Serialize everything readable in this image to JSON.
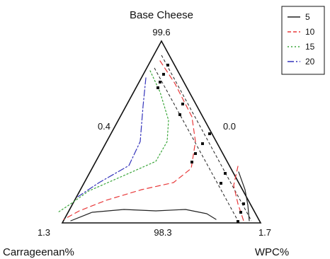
{
  "chart_data": {
    "type": "ternary-contour",
    "title": "Base Cheese",
    "axes": {
      "top": {
        "label": "Base Cheese",
        "max": 99.6
      },
      "left": {
        "label": "Carrageenan%",
        "max": 1.3
      },
      "right": {
        "label": "WPC%",
        "max": 1.7
      },
      "top_tick": "99.6",
      "left_side_tick": "0.4",
      "right_side_tick": "0.0",
      "left_corner_tick": "1.3",
      "bottom_tick": "98.3",
      "right_corner_tick": "1.7"
    },
    "legend": {
      "placement": "top-right",
      "items": [
        {
          "label": "5",
          "color": "#222222",
          "dash": "solid"
        },
        {
          "label": "10",
          "color": "#e8393a",
          "dash": "dash"
        },
        {
          "label": "15",
          "color": "#3aa63a",
          "dash": "dot"
        },
        {
          "label": "20",
          "color": "#3333bb",
          "dash": "dashdot"
        }
      ]
    },
    "contours": [
      {
        "level": 5,
        "color": "#222222",
        "dash": "solid",
        "points": [
          [
            100,
            312
          ],
          [
            130,
            300
          ],
          [
            175,
            296
          ],
          [
            220,
            298
          ],
          [
            262,
            296
          ],
          [
            292,
            302
          ],
          [
            305,
            310
          ]
        ]
      },
      {
        "level": 5,
        "color": "#222222",
        "dash": "solid",
        "points": [
          [
            337,
            243
          ],
          [
            346,
            268
          ],
          [
            350,
            290
          ],
          [
            352,
            312
          ]
        ]
      },
      {
        "level": 10,
        "color": "#e8393a",
        "dash": "dash",
        "points": [
          [
            226,
            86
          ],
          [
            247,
            118
          ],
          [
            271,
            165
          ],
          [
            276,
            200
          ],
          [
            270,
            238
          ],
          [
            245,
            258
          ],
          [
            200,
            268
          ],
          [
            150,
            283
          ],
          [
            112,
            298
          ],
          [
            90,
            310
          ]
        ]
      },
      {
        "level": 10,
        "color": "#e8393a",
        "dash": "dash",
        "points": [
          [
            336,
            235
          ],
          [
            330,
            262
          ],
          [
            336,
            288
          ],
          [
            344,
            312
          ]
        ]
      },
      {
        "level": 15,
        "color": "#3aa63a",
        "dash": "dot",
        "points": [
          [
            212,
            100
          ],
          [
            226,
            130
          ],
          [
            238,
            170
          ],
          [
            236,
            200
          ],
          [
            220,
            228
          ],
          [
            175,
            248
          ],
          [
            125,
            270
          ],
          [
            100,
            288
          ],
          [
            82,
            300
          ]
        ]
      },
      {
        "level": 20,
        "color": "#3333bb",
        "dash": "dashdot",
        "points": [
          [
            206,
            110
          ],
          [
            202,
            150
          ],
          [
            198,
            200
          ],
          [
            182,
            234
          ],
          [
            140,
            258
          ],
          [
            110,
            278
          ]
        ]
      }
    ],
    "design_points": [
      [
        237,
        92
      ],
      [
        231,
        105
      ],
      [
        226,
        116
      ],
      [
        223,
        124
      ],
      [
        258,
        147
      ],
      [
        254,
        162
      ],
      [
        296,
        189
      ],
      [
        286,
        203
      ],
      [
        276,
        217
      ],
      [
        271,
        229
      ],
      [
        318,
        245
      ],
      [
        312,
        259
      ],
      [
        344,
        288
      ],
      [
        340,
        300
      ],
      [
        336,
        313
      ]
    ],
    "design_lines": [
      [
        [
          228,
          78
        ],
        [
          355,
          312
        ]
      ],
      [
        [
          218,
          96
        ],
        [
          336,
          312
        ]
      ]
    ]
  }
}
